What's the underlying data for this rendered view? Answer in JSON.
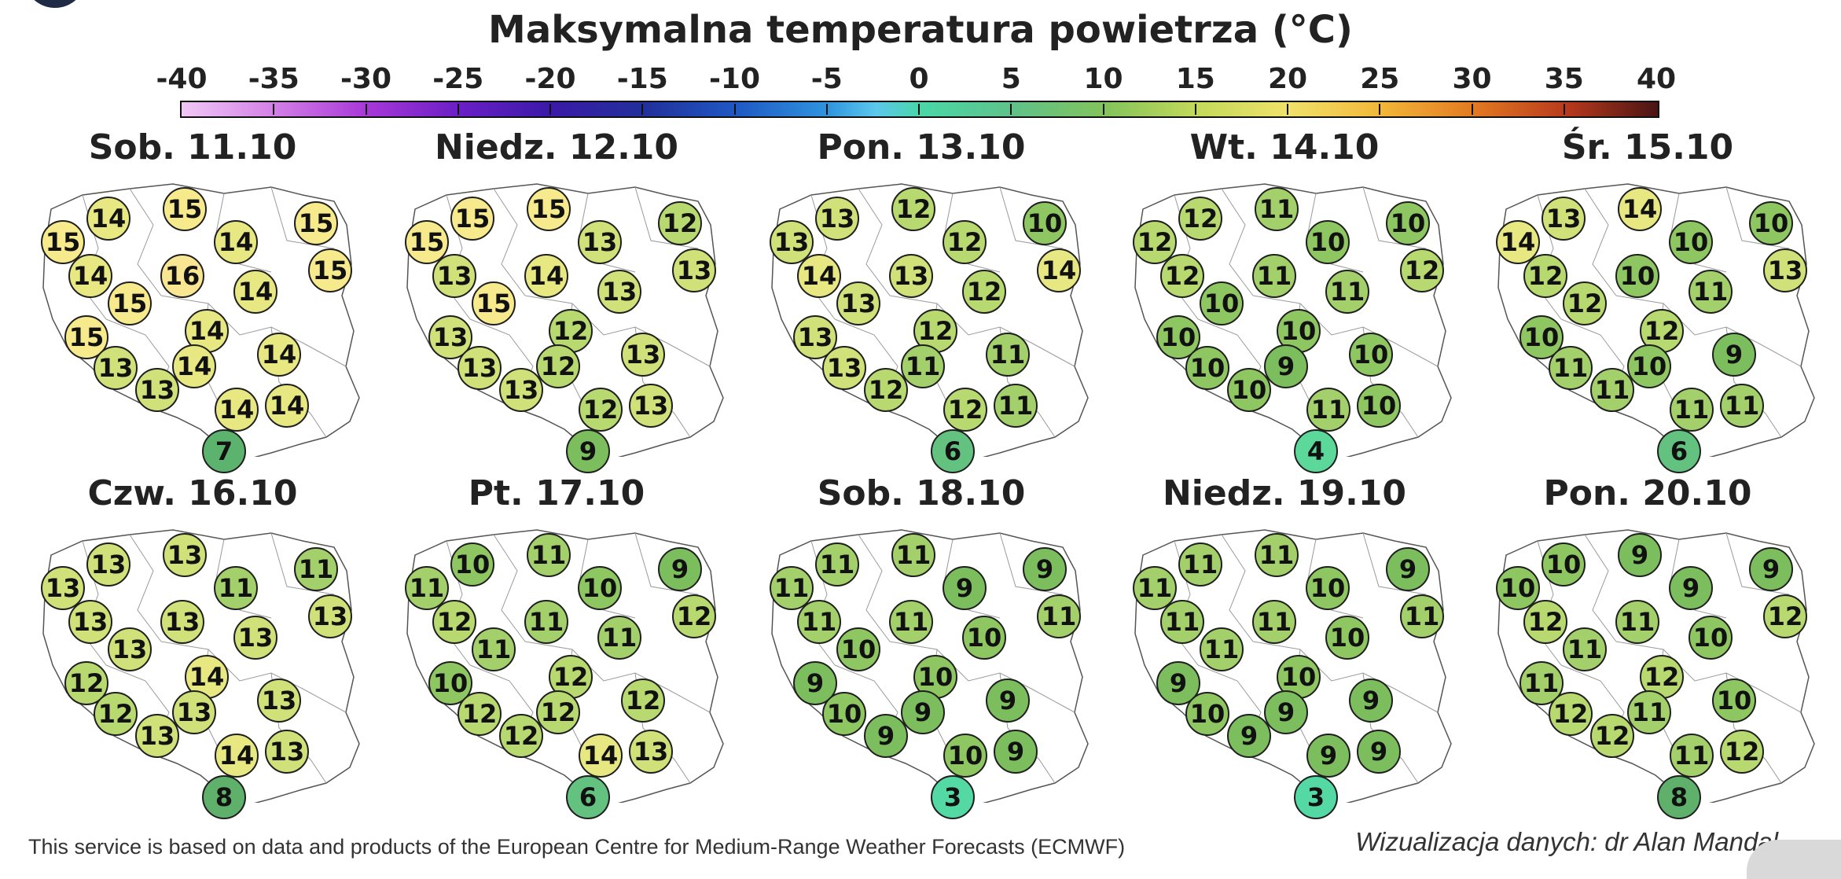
{
  "title": "Maksymalna temperatura powietrza (°C)",
  "colorbar": {
    "ticks": [
      "-40",
      "-35",
      "-30",
      "-25",
      "-20",
      "-15",
      "-10",
      "-5",
      "0",
      "5",
      "10",
      "15",
      "20",
      "25",
      "30",
      "35",
      "40"
    ],
    "range": [
      -40,
      40
    ]
  },
  "panels": [
    {
      "date": "Sob. 11.10",
      "values": [
        14,
        15,
        15,
        14,
        15,
        16,
        14,
        15,
        14,
        15,
        15,
        14,
        14,
        13,
        14,
        13,
        14,
        14,
        7
      ]
    },
    {
      "date": "Niedz. 12.10",
      "values": [
        15,
        15,
        15,
        13,
        12,
        14,
        13,
        15,
        13,
        13,
        13,
        12,
        13,
        13,
        12,
        13,
        12,
        13,
        9
      ]
    },
    {
      "date": "Pon. 13.10",
      "values": [
        13,
        12,
        13,
        12,
        10,
        13,
        14,
        13,
        12,
        14,
        13,
        12,
        11,
        13,
        11,
        12,
        12,
        11,
        6
      ]
    },
    {
      "date": "Wt. 14.10",
      "values": [
        12,
        11,
        12,
        10,
        10,
        11,
        12,
        10,
        11,
        12,
        10,
        10,
        10,
        10,
        9,
        10,
        11,
        10,
        4
      ]
    },
    {
      "date": "Śr. 15.10",
      "values": [
        13,
        14,
        14,
        10,
        10,
        10,
        12,
        12,
        11,
        13,
        10,
        12,
        9,
        11,
        10,
        11,
        11,
        11,
        6
      ]
    },
    {
      "date": "Czw. 16.10",
      "values": [
        13,
        13,
        13,
        11,
        11,
        13,
        13,
        13,
        13,
        13,
        12,
        14,
        13,
        12,
        13,
        13,
        14,
        13,
        8
      ]
    },
    {
      "date": "Pt. 17.10",
      "values": [
        10,
        11,
        11,
        10,
        9,
        11,
        12,
        11,
        11,
        12,
        10,
        12,
        12,
        12,
        12,
        12,
        14,
        13,
        6
      ]
    },
    {
      "date": "Sob. 18.10",
      "values": [
        11,
        11,
        11,
        9,
        9,
        11,
        11,
        10,
        10,
        11,
        9,
        10,
        9,
        10,
        9,
        9,
        10,
        9,
        3
      ]
    },
    {
      "date": "Niedz. 19.10",
      "values": [
        11,
        11,
        11,
        10,
        9,
        11,
        11,
        11,
        10,
        11,
        9,
        10,
        9,
        10,
        9,
        9,
        9,
        9,
        3
      ]
    },
    {
      "date": "Pon. 20.10",
      "values": [
        10,
        9,
        10,
        9,
        9,
        11,
        12,
        11,
        10,
        12,
        11,
        12,
        10,
        12,
        11,
        12,
        11,
        12,
        8
      ]
    }
  ],
  "colors": {
    "t3": "#54d9a4",
    "t4": "#5cd89a",
    "t6": "#63c27f",
    "t7": "#5cb36e",
    "t8": "#5fb06a",
    "t9": "#7cbd5e",
    "t10": "#8ec761",
    "t11": "#a3d06a",
    "t12": "#b7d970",
    "t13": "#cfe178",
    "t14": "#e7e882",
    "t15": "#f6ea8c",
    "t16": "#f8e692"
  },
  "footer": {
    "credit": "This service is based on data and products of the European Centre for Medium-Range Weather Forecasts (ECMWF)",
    "author": "Wizualizacja danych: dr Alan Mandal"
  }
}
